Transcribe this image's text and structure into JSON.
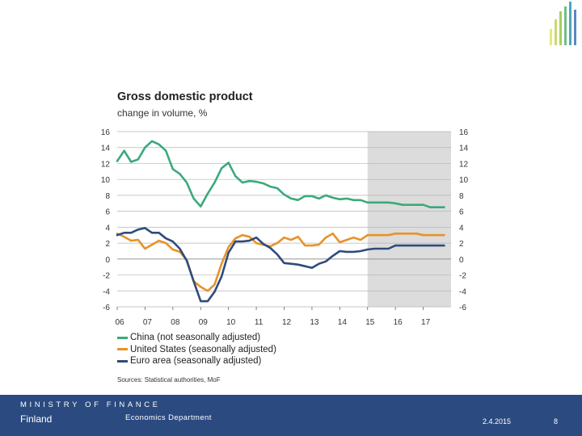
{
  "chart_data": {
    "type": "line",
    "title": "Gross domestic product",
    "subtitle": "change in volume, %",
    "ylim": [
      -6,
      16
    ],
    "yticks": [
      "16",
      "14",
      "12",
      "10",
      "8",
      "6",
      "4",
      "2",
      "0",
      "-2",
      "-4",
      "-6"
    ],
    "xlim": [
      6,
      18
    ],
    "xtick_labels": [
      "06",
      "07",
      "08",
      "09",
      "10",
      "11",
      "12",
      "13",
      "14",
      "15",
      "16",
      "17"
    ],
    "forecast_from": 15,
    "series": [
      {
        "name": "China (not seasonally adjusted)",
        "color": "#3aaa7b",
        "x": [
          6.0,
          6.25,
          6.5,
          6.75,
          7.0,
          7.25,
          7.5,
          7.75,
          8.0,
          8.25,
          8.5,
          8.75,
          9.0,
          9.25,
          9.5,
          9.75,
          10.0,
          10.25,
          10.5,
          10.75,
          11.0,
          11.25,
          11.5,
          11.75,
          12.0,
          12.25,
          12.5,
          12.75,
          13.0,
          13.25,
          13.5,
          13.75,
          14.0,
          14.25,
          14.5,
          14.75,
          15.0,
          15.25,
          15.5,
          15.75,
          16.0,
          16.25,
          16.5,
          16.75,
          17.0,
          17.25,
          17.5,
          17.75
        ],
        "values": [
          12.3,
          13.6,
          12.2,
          12.5,
          14.0,
          14.8,
          14.4,
          13.6,
          11.3,
          10.7,
          9.6,
          7.6,
          6.6,
          8.2,
          9.6,
          11.4,
          12.1,
          10.4,
          9.6,
          9.8,
          9.7,
          9.5,
          9.1,
          8.9,
          8.1,
          7.6,
          7.4,
          7.9,
          7.9,
          7.6,
          8.0,
          7.7,
          7.5,
          7.6,
          7.4,
          7.4,
          7.1,
          7.1,
          7.1,
          7.1,
          7.0,
          6.8,
          6.8,
          6.8,
          6.8,
          6.5,
          6.5,
          6.5
        ]
      },
      {
        "name": "United States (seasonally adjusted)",
        "color": "#e7922a",
        "x": [
          6.0,
          6.25,
          6.5,
          6.75,
          7.0,
          7.25,
          7.5,
          7.75,
          8.0,
          8.25,
          8.5,
          8.75,
          9.0,
          9.25,
          9.5,
          9.75,
          10.0,
          10.25,
          10.5,
          10.75,
          11.0,
          11.25,
          11.5,
          11.75,
          12.0,
          12.25,
          12.5,
          12.75,
          13.0,
          13.25,
          13.5,
          13.75,
          14.0,
          14.25,
          14.5,
          14.75,
          15.0,
          15.25,
          15.5,
          15.75,
          16.0,
          16.25,
          16.5,
          16.75,
          17.0,
          17.25,
          17.5,
          17.75
        ],
        "values": [
          3.2,
          2.8,
          2.3,
          2.4,
          1.3,
          1.8,
          2.3,
          2.0,
          1.2,
          0.9,
          -0.1,
          -2.8,
          -3.5,
          -4.0,
          -3.2,
          -0.6,
          1.5,
          2.6,
          3.0,
          2.8,
          2.0,
          1.8,
          1.6,
          2.0,
          2.7,
          2.4,
          2.8,
          1.7,
          1.7,
          1.8,
          2.7,
          3.2,
          2.1,
          2.4,
          2.7,
          2.4,
          3.0,
          3.0,
          3.0,
          3.0,
          3.2,
          3.2,
          3.2,
          3.2,
          3.0,
          3.0,
          3.0,
          3.0
        ]
      },
      {
        "name": "Euro area (seasonally adjusted)",
        "color": "#2f4b7c",
        "x": [
          6.0,
          6.25,
          6.5,
          6.75,
          7.0,
          7.25,
          7.5,
          7.75,
          8.0,
          8.25,
          8.5,
          8.75,
          9.0,
          9.25,
          9.5,
          9.75,
          10.0,
          10.25,
          10.5,
          10.75,
          11.0,
          11.25,
          11.5,
          11.75,
          12.0,
          12.25,
          12.5,
          12.75,
          13.0,
          13.25,
          13.5,
          13.75,
          14.0,
          14.25,
          14.5,
          14.75,
          15.0,
          15.25,
          15.5,
          15.75,
          16.0,
          16.25,
          16.5,
          16.75,
          17.0,
          17.25,
          17.5,
          17.75
        ],
        "values": [
          3.0,
          3.3,
          3.3,
          3.7,
          3.9,
          3.3,
          3.3,
          2.6,
          2.2,
          1.3,
          -0.2,
          -2.8,
          -5.3,
          -5.3,
          -4.1,
          -2.2,
          0.8,
          2.2,
          2.2,
          2.3,
          2.7,
          1.9,
          1.4,
          0.6,
          -0.5,
          -0.6,
          -0.7,
          -0.9,
          -1.1,
          -0.6,
          -0.3,
          0.4,
          1.0,
          0.9,
          0.9,
          1.0,
          1.2,
          1.3,
          1.3,
          1.3,
          1.7,
          1.7,
          1.7,
          1.7,
          1.7,
          1.7,
          1.7,
          1.7
        ]
      }
    ],
    "sources": "Sources: Statistical authorities, MoF"
  },
  "footer": {
    "ministry": "MINISTRY OF FINANCE",
    "country": "Finland",
    "department": "Economics Department",
    "date": "2.4.2015",
    "page": "8"
  }
}
